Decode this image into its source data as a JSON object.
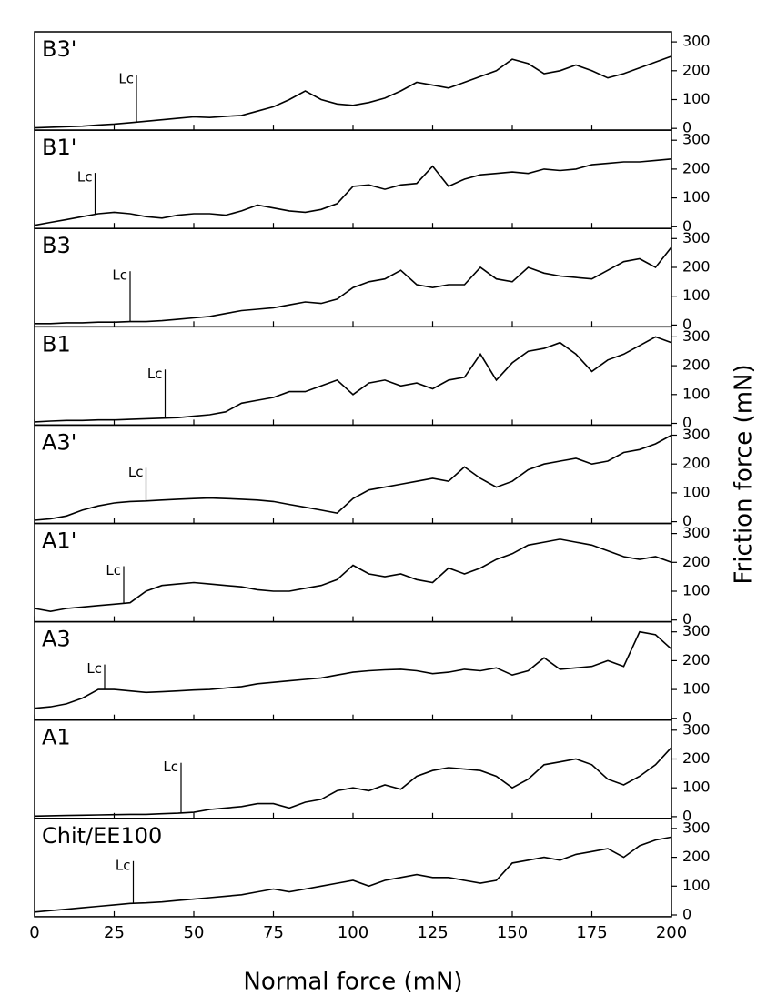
{
  "chart_data": [
    {
      "type": "line",
      "title": "B3'",
      "x": [
        0,
        5,
        10,
        15,
        20,
        25,
        30,
        35,
        40,
        45,
        50,
        55,
        60,
        65,
        70,
        75,
        80,
        85,
        90,
        95,
        100,
        105,
        110,
        115,
        120,
        125,
        130,
        135,
        140,
        145,
        150,
        155,
        160,
        165,
        170,
        175,
        180,
        185,
        190,
        195,
        200
      ],
      "values": [
        2,
        4,
        6,
        8,
        12,
        15,
        20,
        25,
        30,
        35,
        40,
        38,
        42,
        45,
        60,
        75,
        100,
        130,
        100,
        85,
        80,
        90,
        105,
        130,
        160,
        150,
        140,
        160,
        180,
        200,
        240,
        225,
        190,
        200,
        220,
        200,
        175,
        190,
        210,
        230,
        250
      ],
      "xlim": [
        0,
        200
      ],
      "ylim": [
        -6,
        335
      ],
      "yticks": [
        0,
        100,
        200,
        300
      ],
      "color": "#000000",
      "annotations": [
        {
          "text": "Lc",
          "x": 32
        }
      ]
    },
    {
      "type": "line",
      "title": "B1'",
      "x": [
        0,
        5,
        10,
        15,
        20,
        25,
        30,
        35,
        40,
        45,
        50,
        55,
        60,
        65,
        70,
        75,
        80,
        85,
        90,
        95,
        100,
        105,
        110,
        115,
        120,
        125,
        130,
        135,
        140,
        145,
        150,
        155,
        160,
        165,
        170,
        175,
        180,
        185,
        190,
        195,
        200
      ],
      "values": [
        5,
        15,
        25,
        35,
        45,
        50,
        45,
        35,
        30,
        40,
        45,
        45,
        40,
        55,
        75,
        65,
        55,
        50,
        60,
        80,
        140,
        145,
        130,
        145,
        150,
        210,
        140,
        165,
        180,
        185,
        190,
        185,
        200,
        195,
        200,
        215,
        220,
        225,
        225,
        230,
        235
      ],
      "xlim": [
        0,
        200
      ],
      "ylim": [
        -6,
        335
      ],
      "yticks": [
        0,
        100,
        200,
        300
      ],
      "color": "#000000",
      "annotations": [
        {
          "text": "Lc",
          "x": 19
        }
      ]
    },
    {
      "type": "line",
      "title": "B3",
      "x": [
        0,
        5,
        10,
        15,
        20,
        25,
        30,
        35,
        40,
        45,
        50,
        55,
        60,
        65,
        70,
        75,
        80,
        85,
        90,
        95,
        100,
        105,
        110,
        115,
        120,
        125,
        130,
        135,
        140,
        145,
        150,
        155,
        160,
        165,
        170,
        175,
        180,
        185,
        190,
        195,
        200
      ],
      "values": [
        5,
        5,
        8,
        8,
        10,
        10,
        12,
        12,
        15,
        20,
        25,
        30,
        40,
        50,
        55,
        60,
        70,
        80,
        75,
        90,
        130,
        150,
        160,
        190,
        140,
        130,
        140,
        140,
        200,
        160,
        150,
        200,
        180,
        170,
        165,
        160,
        190,
        220,
        230,
        200,
        270
      ],
      "xlim": [
        0,
        200
      ],
      "ylim": [
        -6,
        335
      ],
      "yticks": [
        0,
        100,
        200,
        300
      ],
      "color": "#000000",
      "annotations": [
        {
          "text": "Lc",
          "x": 30
        }
      ]
    },
    {
      "type": "line",
      "title": "B1",
      "x": [
        0,
        5,
        10,
        15,
        20,
        25,
        30,
        35,
        40,
        45,
        50,
        55,
        60,
        65,
        70,
        75,
        80,
        85,
        90,
        95,
        100,
        105,
        110,
        115,
        120,
        125,
        130,
        135,
        140,
        145,
        150,
        155,
        160,
        165,
        170,
        175,
        180,
        185,
        190,
        195,
        200
      ],
      "values": [
        5,
        8,
        10,
        10,
        12,
        12,
        14,
        16,
        18,
        20,
        25,
        30,
        40,
        70,
        80,
        90,
        110,
        110,
        130,
        150,
        100,
        140,
        150,
        130,
        140,
        120,
        150,
        160,
        240,
        150,
        210,
        250,
        260,
        280,
        240,
        180,
        220,
        240,
        270,
        300,
        280
      ],
      "xlim": [
        0,
        200
      ],
      "ylim": [
        -6,
        335
      ],
      "yticks": [
        0,
        100,
        200,
        300
      ],
      "color": "#000000",
      "annotations": [
        {
          "text": "Lc",
          "x": 41
        }
      ]
    },
    {
      "type": "line",
      "title": "A3'",
      "x": [
        0,
        5,
        10,
        15,
        20,
        25,
        30,
        35,
        40,
        45,
        50,
        55,
        60,
        65,
        70,
        75,
        80,
        85,
        90,
        95,
        100,
        105,
        110,
        115,
        120,
        125,
        130,
        135,
        140,
        145,
        150,
        155,
        160,
        165,
        170,
        175,
        180,
        185,
        190,
        195,
        200
      ],
      "values": [
        5,
        10,
        20,
        40,
        55,
        65,
        70,
        72,
        75,
        78,
        80,
        82,
        80,
        78,
        75,
        70,
        60,
        50,
        40,
        30,
        80,
        110,
        120,
        130,
        140,
        150,
        140,
        190,
        150,
        120,
        140,
        180,
        200,
        210,
        220,
        200,
        210,
        240,
        250,
        270,
        300
      ],
      "xlim": [
        0,
        200
      ],
      "ylim": [
        -6,
        335
      ],
      "yticks": [
        0,
        100,
        200,
        300
      ],
      "color": "#000000",
      "annotations": [
        {
          "text": "Lc",
          "x": 35
        }
      ]
    },
    {
      "type": "line",
      "title": "A1'",
      "x": [
        0,
        5,
        10,
        15,
        20,
        25,
        30,
        35,
        40,
        45,
        50,
        55,
        60,
        65,
        70,
        75,
        80,
        85,
        90,
        95,
        100,
        105,
        110,
        115,
        120,
        125,
        130,
        135,
        140,
        145,
        150,
        155,
        160,
        165,
        170,
        175,
        180,
        185,
        190,
        195,
        200
      ],
      "values": [
        40,
        30,
        40,
        45,
        50,
        55,
        60,
        100,
        120,
        125,
        130,
        125,
        120,
        115,
        105,
        100,
        100,
        110,
        120,
        140,
        190,
        160,
        150,
        160,
        140,
        130,
        180,
        160,
        180,
        210,
        230,
        260,
        270,
        280,
        270,
        260,
        240,
        220,
        210,
        220,
        200
      ],
      "xlim": [
        0,
        200
      ],
      "ylim": [
        -6,
        335
      ],
      "yticks": [
        0,
        100,
        200,
        300
      ],
      "color": "#000000",
      "annotations": [
        {
          "text": "Lc",
          "x": 28
        }
      ]
    },
    {
      "type": "line",
      "title": "A3",
      "x": [
        0,
        5,
        10,
        15,
        20,
        25,
        30,
        35,
        40,
        45,
        50,
        55,
        60,
        65,
        70,
        75,
        80,
        85,
        90,
        95,
        100,
        105,
        110,
        115,
        120,
        125,
        130,
        135,
        140,
        145,
        150,
        155,
        160,
        165,
        170,
        175,
        180,
        185,
        190,
        195,
        200
      ],
      "values": [
        35,
        40,
        50,
        70,
        100,
        100,
        95,
        90,
        92,
        95,
        98,
        100,
        105,
        110,
        120,
        125,
        130,
        135,
        140,
        150,
        160,
        165,
        168,
        170,
        165,
        155,
        160,
        170,
        165,
        175,
        150,
        165,
        210,
        170,
        175,
        180,
        200,
        180,
        300,
        290,
        240
      ],
      "xlim": [
        0,
        200
      ],
      "ylim": [
        -6,
        335
      ],
      "yticks": [
        0,
        100,
        200,
        300
      ],
      "color": "#000000",
      "annotations": [
        {
          "text": "Lc",
          "x": 22
        }
      ]
    },
    {
      "type": "line",
      "title": "A1",
      "x": [
        0,
        5,
        10,
        15,
        20,
        25,
        30,
        35,
        40,
        45,
        50,
        55,
        60,
        65,
        70,
        75,
        80,
        85,
        90,
        95,
        100,
        105,
        110,
        115,
        120,
        125,
        130,
        135,
        140,
        145,
        150,
        155,
        160,
        165,
        170,
        175,
        180,
        185,
        190,
        195,
        200
      ],
      "values": [
        2,
        3,
        4,
        5,
        6,
        7,
        8,
        8,
        10,
        12,
        15,
        25,
        30,
        35,
        45,
        45,
        30,
        50,
        60,
        90,
        100,
        90,
        110,
        95,
        140,
        160,
        170,
        165,
        160,
        140,
        100,
        130,
        180,
        190,
        200,
        180,
        130,
        110,
        140,
        180,
        240
      ],
      "xlim": [
        0,
        200
      ],
      "ylim": [
        -6,
        335
      ],
      "yticks": [
        0,
        100,
        200,
        300
      ],
      "color": "#000000",
      "annotations": [
        {
          "text": "Lc",
          "x": 46
        }
      ]
    },
    {
      "type": "line",
      "title": "Chit/EE100",
      "x": [
        0,
        5,
        10,
        15,
        20,
        25,
        30,
        35,
        40,
        45,
        50,
        55,
        60,
        65,
        70,
        75,
        80,
        85,
        90,
        95,
        100,
        105,
        110,
        115,
        120,
        125,
        130,
        135,
        140,
        145,
        150,
        155,
        160,
        165,
        170,
        175,
        180,
        185,
        190,
        195,
        200
      ],
      "values": [
        10,
        15,
        20,
        25,
        30,
        35,
        40,
        42,
        45,
        50,
        55,
        60,
        65,
        70,
        80,
        90,
        80,
        90,
        100,
        110,
        120,
        100,
        120,
        130,
        140,
        130,
        130,
        120,
        110,
        120,
        180,
        190,
        200,
        190,
        210,
        220,
        230,
        200,
        240,
        260,
        270
      ],
      "xlim": [
        0,
        200
      ],
      "ylim": [
        -6,
        335
      ],
      "yticks": [
        0,
        100,
        200,
        300
      ],
      "xticks": [
        0,
        25,
        50,
        75,
        100,
        125,
        150,
        175,
        200
      ],
      "color": "#000000",
      "annotations": [
        {
          "text": "Lc",
          "x": 31
        }
      ],
      "xlabel": "Normal force (mN)",
      "ylabel": "Friction force (mN)"
    }
  ]
}
